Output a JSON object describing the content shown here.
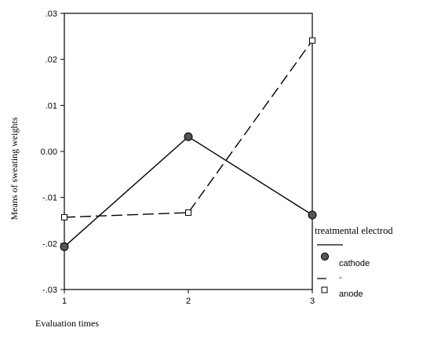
{
  "chart_data": {
    "type": "line",
    "x": [
      1,
      2,
      3
    ],
    "xlim": [
      1,
      3
    ],
    "ylim": [
      -0.03,
      0.03
    ],
    "x_ticks": [
      {
        "value": 1,
        "label": "1"
      },
      {
        "value": 2,
        "label": "2"
      },
      {
        "value": 3,
        "label": "3"
      }
    ],
    "y_ticks": [
      {
        "value": 0.03,
        "label": ".03"
      },
      {
        "value": 0.02,
        "label": ".02"
      },
      {
        "value": 0.01,
        "label": ".01"
      },
      {
        "value": 0.0,
        "label": "0.00"
      },
      {
        "value": -0.01,
        "label": "-.01"
      },
      {
        "value": -0.02,
        "label": "-.02"
      },
      {
        "value": -0.03,
        "label": "-.03"
      }
    ],
    "xlabel": "Evaluation times",
    "ylabel": "Means of sweating weights",
    "legend": {
      "title": "treatmental electrod",
      "title_continuation": "-",
      "placement": "right"
    },
    "series": [
      {
        "name": "cathode",
        "values": [
          -0.0207,
          0.0032,
          -0.0138
        ],
        "line_style": "solid",
        "marker": "filled-circle",
        "color": "#000000"
      },
      {
        "name": "anode",
        "values": [
          -0.0143,
          -0.0133,
          0.0241
        ],
        "line_style": "dashed",
        "marker": "open-square",
        "color": "#000000"
      }
    ],
    "grid": false
  }
}
